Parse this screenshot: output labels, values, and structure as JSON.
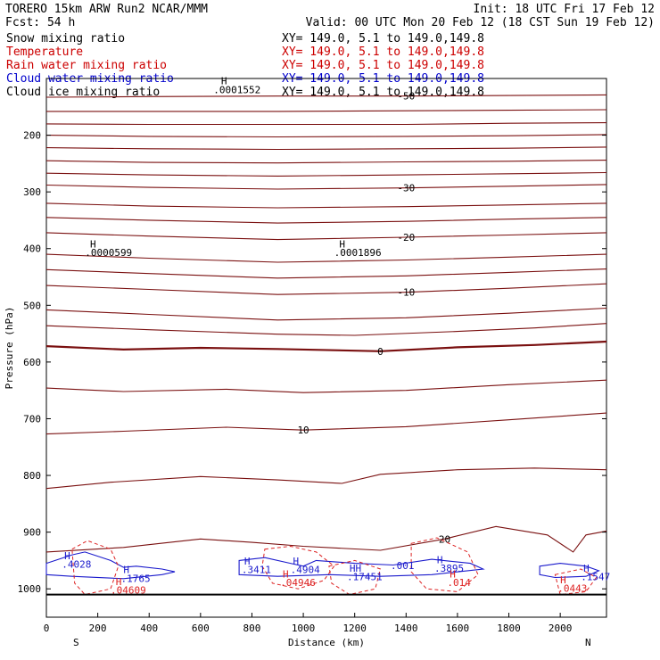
{
  "header": {
    "line1_left": "TORERO  15km ARW   Run2    NCAR/MMM",
    "line1_right": "Init: 18 UTC Fri 17 Feb 12",
    "line2_left": "Fcst:    54 h",
    "line2_right": "Valid: 00 UTC Mon 20 Feb 12 (18 CST Sun 19 Feb 12)"
  },
  "fields": [
    {
      "name": "Snow mixing ratio",
      "xy": "XY= 149.0,  5.1 to 149.0,149.8",
      "color": "#000000"
    },
    {
      "name": "Temperature",
      "xy": "XY= 149.0,  5.1 to 149.0,149.8",
      "color": "#cc0000"
    },
    {
      "name": "Rain water mixing ratio",
      "xy": "XY= 149.0,  5.1 to 149.0,149.8",
      "color": "#cc0000"
    },
    {
      "name": "Cloud water mixing ratio",
      "xy": "XY= 149.0,  5.1 to 149.0,149.8",
      "color": "#0000cc"
    },
    {
      "name": "Cloud ice mixing ratio",
      "xy": "XY= 149.0,  5.1 to 149.0,149.8",
      "color": "#000000"
    }
  ],
  "colors": {
    "temperature": "#7a1010",
    "rain": "#dd2222",
    "cloud_water": "#1a1acc",
    "axis": "#000000"
  },
  "chart_data": {
    "type": "contour",
    "xlabel": "Distance (km)",
    "ylabel": "Pressure (hPa)",
    "xlim": [
      0,
      2180
    ],
    "ylim": [
      1050,
      100
    ],
    "x_ticks": [
      0,
      200,
      400,
      600,
      800,
      1000,
      1200,
      1400,
      1600,
      1800,
      2000
    ],
    "y_ticks": [
      200,
      300,
      400,
      500,
      600,
      700,
      800,
      900,
      1000
    ],
    "x_end_labels": {
      "left": "S",
      "right": "N"
    },
    "temperature_contours": [
      {
        "label": "-50",
        "points": [
          [
            0,
            133
          ],
          [
            400,
            132
          ],
          [
            900,
            131
          ],
          [
            1400,
            131
          ],
          [
            1800,
            130
          ],
          [
            2180,
            129
          ]
        ]
      },
      {
        "label": "",
        "points": [
          [
            0,
            158
          ],
          [
            400,
            158
          ],
          [
            900,
            158
          ],
          [
            1400,
            157
          ],
          [
            1800,
            156
          ],
          [
            2180,
            155
          ]
        ]
      },
      {
        "label": "",
        "points": [
          [
            0,
            180
          ],
          [
            400,
            181
          ],
          [
            900,
            181
          ],
          [
            1400,
            181
          ],
          [
            1800,
            179
          ],
          [
            2180,
            178
          ]
        ]
      },
      {
        "label": "",
        "points": [
          [
            0,
            200
          ],
          [
            400,
            202
          ],
          [
            900,
            203
          ],
          [
            1400,
            202
          ],
          [
            1800,
            201
          ],
          [
            2180,
            199
          ]
        ]
      },
      {
        "label": "",
        "points": [
          [
            0,
            222
          ],
          [
            400,
            224
          ],
          [
            900,
            225
          ],
          [
            1400,
            224
          ],
          [
            1800,
            223
          ],
          [
            2180,
            221
          ]
        ]
      },
      {
        "label": "",
        "points": [
          [
            0,
            245
          ],
          [
            400,
            248
          ],
          [
            900,
            249
          ],
          [
            1400,
            247
          ],
          [
            1800,
            246
          ],
          [
            2180,
            244
          ]
        ]
      },
      {
        "label": "",
        "points": [
          [
            0,
            267
          ],
          [
            400,
            270
          ],
          [
            900,
            272
          ],
          [
            1400,
            270
          ],
          [
            1800,
            268
          ],
          [
            2180,
            266
          ]
        ]
      },
      {
        "label": "-30",
        "points": [
          [
            0,
            288
          ],
          [
            400,
            292
          ],
          [
            900,
            295
          ],
          [
            1400,
            293
          ],
          [
            1800,
            290
          ],
          [
            2180,
            287
          ]
        ]
      },
      {
        "label": "",
        "points": [
          [
            0,
            320
          ],
          [
            400,
            325
          ],
          [
            900,
            328
          ],
          [
            1400,
            326
          ],
          [
            1800,
            323
          ],
          [
            2180,
            320
          ]
        ]
      },
      {
        "label": "",
        "points": [
          [
            0,
            345
          ],
          [
            400,
            350
          ],
          [
            900,
            355
          ],
          [
            1400,
            352
          ],
          [
            1800,
            348
          ],
          [
            2180,
            345
          ]
        ]
      },
      {
        "label": "-20",
        "points": [
          [
            0,
            372
          ],
          [
            400,
            378
          ],
          [
            900,
            384
          ],
          [
            1400,
            380
          ],
          [
            1800,
            376
          ],
          [
            2180,
            372
          ]
        ]
      },
      {
        "label": "",
        "points": [
          [
            0,
            410
          ],
          [
            400,
            417
          ],
          [
            900,
            424
          ],
          [
            1400,
            420
          ],
          [
            1800,
            415
          ],
          [
            2180,
            410
          ]
        ]
      },
      {
        "label": "",
        "points": [
          [
            0,
            437
          ],
          [
            400,
            444
          ],
          [
            900,
            452
          ],
          [
            1400,
            448
          ],
          [
            1800,
            442
          ],
          [
            2180,
            436
          ]
        ]
      },
      {
        "label": "-10",
        "points": [
          [
            0,
            465
          ],
          [
            400,
            472
          ],
          [
            900,
            481
          ],
          [
            1400,
            477
          ],
          [
            1800,
            470
          ],
          [
            2180,
            462
          ]
        ]
      },
      {
        "label": "",
        "points": [
          [
            0,
            508
          ],
          [
            400,
            516
          ],
          [
            900,
            526
          ],
          [
            1400,
            522
          ],
          [
            1800,
            514
          ],
          [
            2180,
            505
          ]
        ]
      },
      {
        "label": "",
        "points": [
          [
            0,
            536
          ],
          [
            400,
            543
          ],
          [
            900,
            551
          ],
          [
            1200,
            553
          ],
          [
            1600,
            546
          ],
          [
            1900,
            540
          ],
          [
            2180,
            532
          ]
        ]
      },
      {
        "label": "0",
        "points": [
          [
            0,
            572
          ],
          [
            300,
            578
          ],
          [
            600,
            575
          ],
          [
            900,
            577
          ],
          [
            1300,
            581
          ],
          [
            1600,
            574
          ],
          [
            1900,
            570
          ],
          [
            2180,
            564
          ]
        ]
      },
      {
        "label": "",
        "points": [
          [
            0,
            646
          ],
          [
            300,
            652
          ],
          [
            700,
            648
          ],
          [
            1000,
            654
          ],
          [
            1400,
            650
          ],
          [
            1800,
            640
          ],
          [
            2180,
            632
          ]
        ]
      },
      {
        "label": "10",
        "points": [
          [
            0,
            727
          ],
          [
            300,
            722
          ],
          [
            700,
            715
          ],
          [
            1000,
            720
          ],
          [
            1400,
            714
          ],
          [
            1800,
            702
          ],
          [
            2180,
            690
          ]
        ]
      },
      {
        "label": "",
        "points": [
          [
            0,
            823
          ],
          [
            250,
            812
          ],
          [
            600,
            802
          ],
          [
            900,
            808
          ],
          [
            1150,
            814
          ],
          [
            1300,
            798
          ],
          [
            1600,
            790
          ],
          [
            1900,
            787
          ],
          [
            2180,
            790
          ]
        ]
      },
      {
        "label": "20",
        "points": [
          [
            0,
            935
          ],
          [
            300,
            927
          ],
          [
            600,
            912
          ],
          [
            800,
            918
          ],
          [
            1000,
            925
          ],
          [
            1300,
            932
          ],
          [
            1550,
            912
          ],
          [
            1750,
            890
          ],
          [
            1950,
            905
          ],
          [
            2050,
            935
          ],
          [
            2100,
            905
          ],
          [
            2180,
            898
          ]
        ]
      }
    ],
    "annotations": [
      {
        "text": "H",
        "x": 680,
        "y": 110,
        "color": "#000000"
      },
      {
        "text": ".0001552",
        "x": 650,
        "y": 126,
        "color": "#000000"
      },
      {
        "text": "H",
        "x": 170,
        "y": 398,
        "color": "#000000"
      },
      {
        "text": ".0000599",
        "x": 150,
        "y": 413,
        "color": "#000000"
      },
      {
        "text": "H",
        "x": 1140,
        "y": 398,
        "color": "#000000"
      },
      {
        "text": ".0001896",
        "x": 1120,
        "y": 413,
        "color": "#000000"
      },
      {
        "text": "H",
        "x": 70,
        "y": 948,
        "color": "#1a1acc"
      },
      {
        "text": ".4028",
        "x": 60,
        "y": 963,
        "color": "#1a1acc"
      },
      {
        "text": "H",
        "x": 300,
        "y": 972,
        "color": "#1a1acc"
      },
      {
        "text": ".1765",
        "x": 290,
        "y": 988,
        "color": "#1a1acc"
      },
      {
        "text": "H",
        "x": 270,
        "y": 993,
        "color": "#dd2222"
      },
      {
        "text": ".04609",
        "x": 250,
        "y": 1008,
        "color": "#dd2222"
      },
      {
        "text": "H",
        "x": 770,
        "y": 957,
        "color": "#1a1acc"
      },
      {
        "text": ".3411",
        "x": 760,
        "y": 972,
        "color": "#1a1acc"
      },
      {
        "text": "H",
        "x": 960,
        "y": 957,
        "color": "#1a1acc"
      },
      {
        "text": ".4904",
        "x": 950,
        "y": 972,
        "color": "#1a1acc"
      },
      {
        "text": "H",
        "x": 920,
        "y": 980,
        "color": "#dd2222"
      },
      {
        "text": ".04946",
        "x": 910,
        "y": 995,
        "color": "#dd2222"
      },
      {
        "text": "HH",
        "x": 1180,
        "y": 970,
        "color": "#1a1acc"
      },
      {
        "text": ".17451",
        "x": 1170,
        "y": 985,
        "color": "#1a1acc"
      },
      {
        "text": ".001",
        "x": 1340,
        "y": 965,
        "color": "#1a1acc"
      },
      {
        "text": "H",
        "x": 1520,
        "y": 955,
        "color": "#1a1acc"
      },
      {
        "text": ".3895",
        "x": 1510,
        "y": 970,
        "color": "#1a1acc"
      },
      {
        "text": "H",
        "x": 1570,
        "y": 980,
        "color": "#dd2222"
      },
      {
        "text": ".014",
        "x": 1560,
        "y": 995,
        "color": "#dd2222"
      },
      {
        "text": "H",
        "x": 2090,
        "y": 970,
        "color": "#1a1acc"
      },
      {
        "text": ".1547",
        "x": 2080,
        "y": 985,
        "color": "#1a1acc"
      },
      {
        "text": "H",
        "x": 2000,
        "y": 990,
        "color": "#dd2222"
      },
      {
        "text": ".0443",
        "x": 1990,
        "y": 1005,
        "color": "#dd2222"
      }
    ],
    "cloud_water_contours": [
      [
        [
          0,
          955
        ],
        [
          100,
          940
        ],
        [
          150,
          935
        ],
        [
          250,
          950
        ],
        [
          300,
          962
        ],
        [
          350,
          960
        ],
        [
          450,
          965
        ],
        [
          500,
          970
        ],
        [
          450,
          975
        ],
        [
          300,
          982
        ],
        [
          100,
          978
        ],
        [
          0,
          975
        ]
      ],
      [
        [
          750,
          950
        ],
        [
          850,
          945
        ],
        [
          950,
          955
        ],
        [
          1000,
          960
        ],
        [
          1050,
          950
        ],
        [
          1200,
          955
        ],
        [
          1350,
          958
        ],
        [
          1500,
          948
        ],
        [
          1650,
          955
        ],
        [
          1700,
          965
        ],
        [
          1500,
          975
        ],
        [
          1300,
          978
        ],
        [
          1100,
          975
        ],
        [
          900,
          978
        ],
        [
          750,
          975
        ]
      ],
      [
        [
          1920,
          960
        ],
        [
          2000,
          955
        ],
        [
          2100,
          960
        ],
        [
          2150,
          968
        ],
        [
          2100,
          978
        ],
        [
          1980,
          980
        ],
        [
          1920,
          975
        ]
      ]
    ],
    "rain_contours": [
      [
        [
          100,
          930
        ],
        [
          160,
          915
        ],
        [
          250,
          930
        ],
        [
          280,
          960
        ],
        [
          250,
          1000
        ],
        [
          150,
          1010
        ],
        [
          110,
          990
        ]
      ],
      [
        [
          850,
          930
        ],
        [
          950,
          925
        ],
        [
          1050,
          935
        ],
        [
          1120,
          960
        ],
        [
          1080,
          985
        ],
        [
          980,
          1000
        ],
        [
          880,
          990
        ],
        [
          840,
          960
        ]
      ],
      [
        [
          1100,
          960
        ],
        [
          1200,
          950
        ],
        [
          1300,
          965
        ],
        [
          1280,
          1000
        ],
        [
          1180,
          1010
        ],
        [
          1110,
          990
        ]
      ],
      [
        [
          1420,
          920
        ],
        [
          1520,
          910
        ],
        [
          1640,
          935
        ],
        [
          1680,
          975
        ],
        [
          1600,
          1005
        ],
        [
          1480,
          1000
        ],
        [
          1420,
          970
        ]
      ],
      [
        [
          1980,
          975
        ],
        [
          2080,
          965
        ],
        [
          2140,
          980
        ],
        [
          2100,
          1005
        ],
        [
          2000,
          1010
        ]
      ]
    ]
  }
}
